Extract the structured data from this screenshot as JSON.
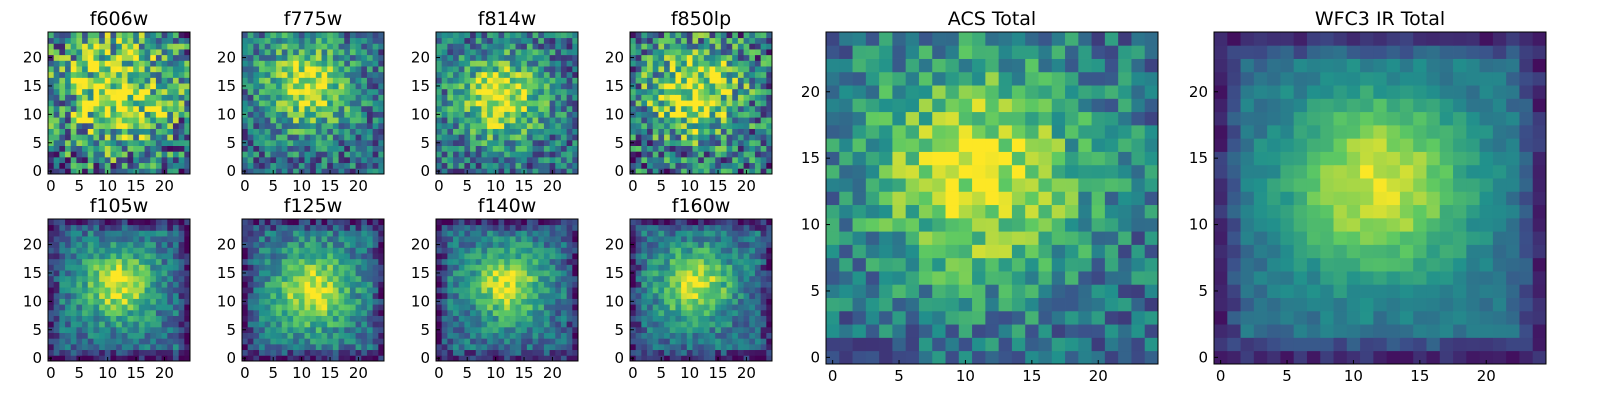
{
  "figure": {
    "description_free": true,
    "colormap": "viridis",
    "colors": [
      "#440154",
      "#3b528b",
      "#21918c",
      "#5ec962",
      "#fde725"
    ]
  },
  "chart_data": [
    {
      "type": "heatmap",
      "id": "f606w",
      "title": "f606w",
      "grid": 25,
      "xticks": [
        0,
        5,
        10,
        15,
        20
      ],
      "yticks": [
        0,
        5,
        10,
        15,
        20
      ],
      "xlim": [
        0,
        24
      ],
      "ylim": [
        0,
        24
      ],
      "center": [
        12,
        14
      ],
      "spread": 7,
      "noise": 0.42,
      "seed": 11
    },
    {
      "type": "heatmap",
      "id": "f775w",
      "title": "f775w",
      "grid": 25,
      "xticks": [
        0,
        5,
        10,
        15,
        20
      ],
      "yticks": [
        0,
        5,
        10,
        15,
        20
      ],
      "xlim": [
        0,
        24
      ],
      "ylim": [
        0,
        24
      ],
      "center": [
        11,
        15
      ],
      "spread": 5.5,
      "noise": 0.28,
      "seed": 23
    },
    {
      "type": "heatmap",
      "id": "f814w",
      "title": "f814w",
      "grid": 25,
      "xticks": [
        0,
        5,
        10,
        15,
        20
      ],
      "yticks": [
        0,
        5,
        10,
        15,
        20
      ],
      "xlim": [
        0,
        24
      ],
      "ylim": [
        0,
        24
      ],
      "center": [
        11,
        13
      ],
      "spread": 5.5,
      "noise": 0.28,
      "seed": 37
    },
    {
      "type": "heatmap",
      "id": "f850lp",
      "title": "f850lp",
      "grid": 25,
      "xticks": [
        0,
        5,
        10,
        15,
        20
      ],
      "yticks": [
        0,
        5,
        10,
        15,
        20
      ],
      "xlim": [
        0,
        24
      ],
      "ylim": [
        0,
        24
      ],
      "center": [
        11,
        14
      ],
      "spread": 6,
      "noise": 0.38,
      "seed": 41
    },
    {
      "type": "heatmap",
      "id": "f105w",
      "title": "f105w",
      "grid": 25,
      "xticks": [
        0,
        5,
        10,
        15,
        20
      ],
      "yticks": [
        0,
        5,
        10,
        15,
        20
      ],
      "xlim": [
        0,
        24
      ],
      "ylim": [
        0,
        24
      ],
      "center": [
        12,
        13
      ],
      "spread": 4.5,
      "noise": 0.18,
      "seed": 53
    },
    {
      "type": "heatmap",
      "id": "f125w",
      "title": "f125w",
      "grid": 25,
      "xticks": [
        0,
        5,
        10,
        15,
        20
      ],
      "yticks": [
        0,
        5,
        10,
        15,
        20
      ],
      "xlim": [
        0,
        24
      ],
      "ylim": [
        0,
        24
      ],
      "center": [
        12,
        12
      ],
      "spread": 5,
      "noise": 0.18,
      "seed": 67
    },
    {
      "type": "heatmap",
      "id": "f140w",
      "title": "f140w",
      "grid": 25,
      "xticks": [
        0,
        5,
        10,
        15,
        20
      ],
      "yticks": [
        0,
        5,
        10,
        15,
        20
      ],
      "xlim": [
        0,
        24
      ],
      "ylim": [
        0,
        24
      ],
      "center": [
        12,
        13
      ],
      "spread": 4.5,
      "noise": 0.18,
      "seed": 71
    },
    {
      "type": "heatmap",
      "id": "f160w",
      "title": "f160w",
      "grid": 25,
      "xticks": [
        0,
        5,
        10,
        15,
        20
      ],
      "yticks": [
        0,
        5,
        10,
        15,
        20
      ],
      "xlim": [
        0,
        24
      ],
      "ylim": [
        0,
        24
      ],
      "center": [
        11,
        13
      ],
      "spread": 4.5,
      "noise": 0.18,
      "seed": 83
    },
    {
      "type": "heatmap",
      "id": "acs-total",
      "title": "ACS Total",
      "grid": 25,
      "xticks": [
        0,
        5,
        10,
        15,
        20
      ],
      "yticks": [
        0,
        5,
        10,
        15,
        20
      ],
      "xlim": [
        0,
        24
      ],
      "ylim": [
        0,
        24
      ],
      "center": [
        11,
        14
      ],
      "spread": 6,
      "noise": 0.22,
      "seed": 97
    },
    {
      "type": "heatmap",
      "id": "wfc3-ir-total",
      "title": "WFC3 IR Total",
      "grid": 25,
      "xticks": [
        0,
        5,
        10,
        15,
        20
      ],
      "yticks": [
        0,
        5,
        10,
        15,
        20
      ],
      "xlim": [
        0,
        24
      ],
      "ylim": [
        0,
        24
      ],
      "center": [
        12,
        13
      ],
      "spread": 5,
      "noise": 0.08,
      "seed": 101
    }
  ]
}
